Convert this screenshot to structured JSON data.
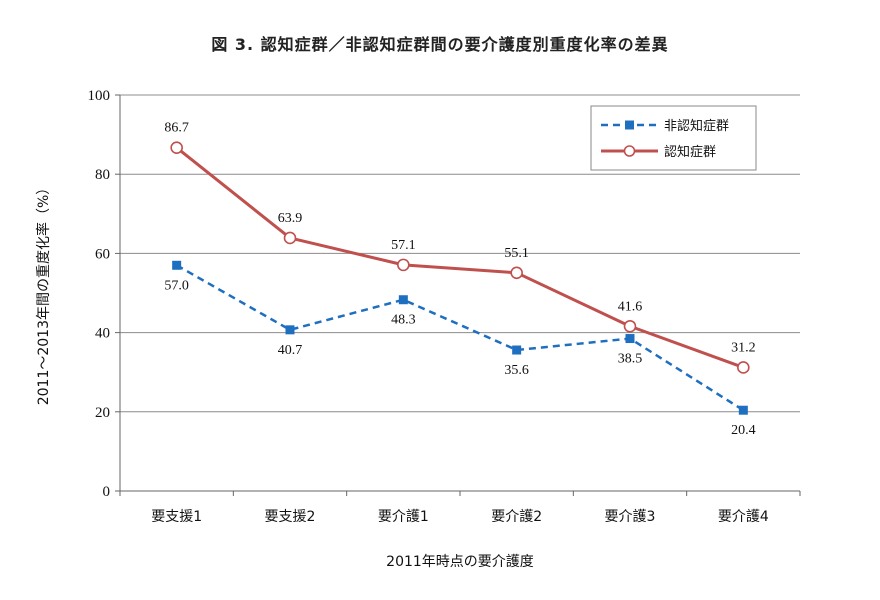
{
  "chart_data": {
    "type": "line",
    "title": "図 3. 認知症群／非認知症群間の要介護度別重度化率の差異",
    "xlabel": "2011年時点の要介護度",
    "ylabel": "2011～2013年間の重度化率（%）",
    "ylim": [
      0,
      100
    ],
    "yticks": [
      "0",
      "20",
      "40",
      "60",
      "80",
      "100"
    ],
    "categories": [
      "要支援1",
      "要支援2",
      "要介護1",
      "要介護2",
      "要介護3",
      "要介護4"
    ],
    "grid": true,
    "legend_position": "top-right",
    "series": [
      {
        "name": "非認知症群",
        "values": [
          57.0,
          40.7,
          48.3,
          35.6,
          38.5,
          20.4
        ],
        "labels": [
          "57.0",
          "40.7",
          "48.3",
          "35.6",
          "38.5",
          "20.4"
        ],
        "color": "#1f6fc1",
        "style": "dashed",
        "marker": "square"
      },
      {
        "name": "認知症群",
        "values": [
          86.7,
          63.9,
          57.1,
          55.1,
          41.6,
          31.2
        ],
        "labels": [
          "86.7",
          "63.9",
          "57.1",
          "55.1",
          "41.6",
          "31.2"
        ],
        "color": "#c0504d",
        "style": "solid",
        "marker": "circle"
      }
    ]
  }
}
